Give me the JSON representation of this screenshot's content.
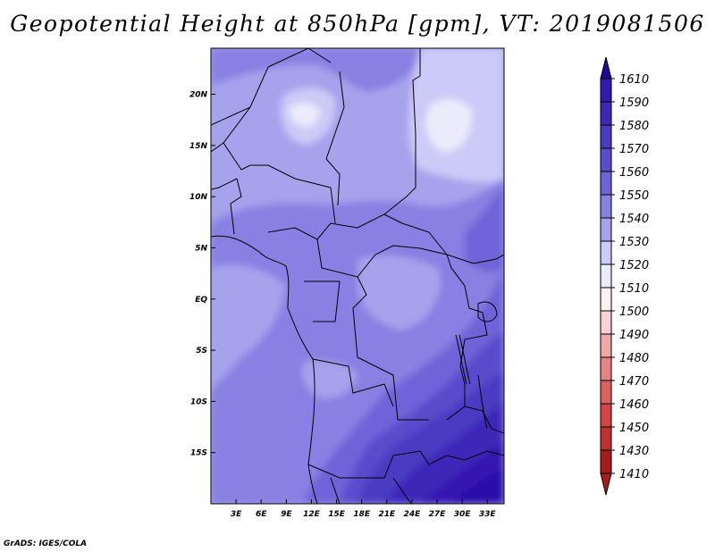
{
  "title": "Geopotential Height at 850hPa [gpm], VT: 2019081506",
  "credit": "GrADS: IGES/COLA",
  "map": {
    "lon_range": [
      0,
      35
    ],
    "lat_range": [
      -20,
      24.5
    ],
    "x_ticks": [
      {
        "value": 3,
        "label": "3E"
      },
      {
        "value": 6,
        "label": "6E"
      },
      {
        "value": 9,
        "label": "9E"
      },
      {
        "value": 12,
        "label": "12E"
      },
      {
        "value": 15,
        "label": "15E"
      },
      {
        "value": 18,
        "label": "18E"
      },
      {
        "value": 21,
        "label": "21E"
      },
      {
        "value": 24,
        "label": "24E"
      },
      {
        "value": 27,
        "label": "27E"
      },
      {
        "value": 30,
        "label": "30E"
      },
      {
        "value": 33,
        "label": "33E"
      }
    ],
    "y_ticks": [
      {
        "value": 20,
        "label": "20N"
      },
      {
        "value": 15,
        "label": "15N"
      },
      {
        "value": 10,
        "label": "10N"
      },
      {
        "value": 5,
        "label": "5N"
      },
      {
        "value": 0,
        "label": "EQ"
      },
      {
        "value": -5,
        "label": "5S"
      },
      {
        "value": -10,
        "label": "10S"
      },
      {
        "value": -15,
        "label": "15S"
      }
    ]
  },
  "colorbar": {
    "levels": [
      {
        "value": 1610,
        "label": "1610",
        "color": "#2a0aa8"
      },
      {
        "value": 1590,
        "label": "1590",
        "color": "#3418b0"
      },
      {
        "value": 1580,
        "label": "1580",
        "color": "#3e28b8"
      },
      {
        "value": 1570,
        "label": "1570",
        "color": "#4a3ac2"
      },
      {
        "value": 1560,
        "label": "1560",
        "color": "#5a4ccc"
      },
      {
        "value": 1550,
        "label": "1550",
        "color": "#6e64d8"
      },
      {
        "value": 1540,
        "label": "1540",
        "color": "#8880e2"
      },
      {
        "value": 1530,
        "label": "1530",
        "color": "#a6a2ec"
      },
      {
        "value": 1520,
        "label": "1520",
        "color": "#cccaf6"
      },
      {
        "value": 1510,
        "label": "1510",
        "color": "#ecebfc"
      },
      {
        "value": 1500,
        "label": "1500",
        "color": "#fdf0f0"
      },
      {
        "value": 1490,
        "label": "1490",
        "color": "#f8d2d2"
      },
      {
        "value": 1480,
        "label": "1480",
        "color": "#f0a8a8"
      },
      {
        "value": 1470,
        "label": "1470",
        "color": "#e88484"
      },
      {
        "value": 1460,
        "label": "1460",
        "color": "#de6060"
      },
      {
        "value": 1450,
        "label": "1450",
        "color": "#d44444"
      },
      {
        "value": 1430,
        "label": "1430",
        "color": "#c23030"
      },
      {
        "value": 1410,
        "label": "1410",
        "color": "#a61c1c"
      }
    ],
    "top_arrow_color": "#22089a",
    "bottom_arrow_color": "#a61c1c"
  }
}
